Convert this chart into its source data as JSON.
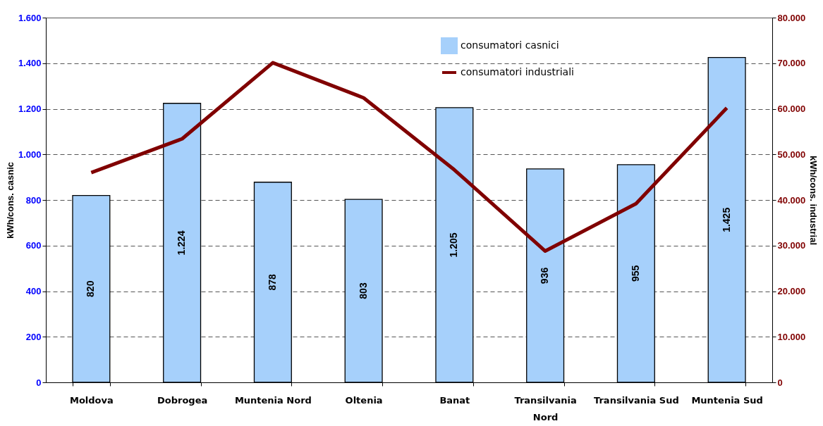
{
  "chart_data": {
    "type": "bar",
    "ylabel": "kWh/cons. casnic",
    "y2label": "kWh/cons. industrial",
    "categories": [
      "Moldova",
      "Dobrogea",
      "Muntenia Nord",
      "Oltenia",
      "Banat",
      "Transilvania Nord",
      "Transilvania Sud",
      "Muntenia Sud"
    ],
    "series": [
      {
        "name": "consumatori casnici",
        "color": "#a6d0fb",
        "values": [
          820,
          1224,
          878,
          803,
          1205,
          936,
          955,
          1425
        ],
        "value_labels": [
          "820",
          "1.224",
          "878",
          "803",
          "1.205",
          "936",
          "955",
          "1.425"
        ]
      },
      {
        "name": "consumatori industriali",
        "type": "line",
        "axis": "y2",
        "color": "#800000",
        "values": [
          46000,
          53400,
          70100,
          62400,
          46600,
          28800,
          39200,
          60200
        ]
      }
    ],
    "ylim": [
      0,
      1600
    ],
    "yticks": [
      0,
      {
        "value": 200,
        "label": "200"
      },
      {
        "value": 400,
        "label": "400"
      },
      {
        "value": 600,
        "label": "600"
      },
      {
        "value": 800,
        "label": "800"
      },
      {
        "value": 1000,
        "label": "1.000"
      },
      {
        "value": 1200,
        "label": "1.200"
      },
      {
        "value": 1400,
        "label": "1.400"
      },
      {
        "value": 1600,
        "label": "1.600"
      }
    ],
    "y2lim": [
      0,
      80000
    ],
    "y2ticks": [
      0,
      {
        "value": 10000,
        "label": "10.000"
      },
      {
        "value": 20000,
        "label": "20.000"
      },
      {
        "value": 30000,
        "label": "30.000"
      },
      {
        "value": 40000,
        "label": "40.000"
      },
      {
        "value": 50000,
        "label": "50.000"
      },
      {
        "value": 60000,
        "label": "60.000"
      },
      {
        "value": 70000,
        "label": "70.000"
      },
      {
        "value": 80000,
        "label": "80.000"
      }
    ],
    "grid": "y",
    "legend": "top right"
  }
}
